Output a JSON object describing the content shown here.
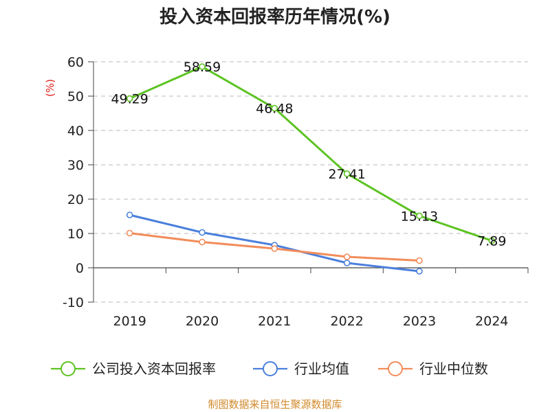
{
  "title": "投入资本回报率历年情况(%)",
  "source": "制图数据来自恒生聚源数据库",
  "chart_data": {
    "type": "line",
    "title": "投入资本回报率历年情况(%)",
    "ylabel": "(%)",
    "xlabel": "",
    "categories": [
      "2019",
      "2020",
      "2021",
      "2022",
      "2023",
      "2024"
    ],
    "ylim": [
      -10,
      60
    ],
    "yticks": [
      -10,
      0,
      10,
      20,
      30,
      40,
      50,
      60
    ],
    "grid": true,
    "legend_position": "bottom",
    "series": [
      {
        "name": "公司投入资本回报率",
        "color": "#5cc322",
        "values": [
          49.29,
          58.59,
          46.48,
          27.41,
          15.13,
          7.89
        ],
        "labels": [
          "49.29",
          "58.59",
          "46.48",
          "27.41",
          "15.13",
          "7.89"
        ],
        "show_labels": true
      },
      {
        "name": "行业均值",
        "color": "#4a7fdc",
        "values": [
          15.4,
          10.3,
          6.6,
          1.4,
          -1.0,
          null
        ],
        "show_labels": false
      },
      {
        "name": "行业中位数",
        "color": "#f28c5a",
        "values": [
          10.1,
          7.5,
          5.6,
          3.2,
          2.1,
          null
        ],
        "show_labels": false
      }
    ]
  }
}
